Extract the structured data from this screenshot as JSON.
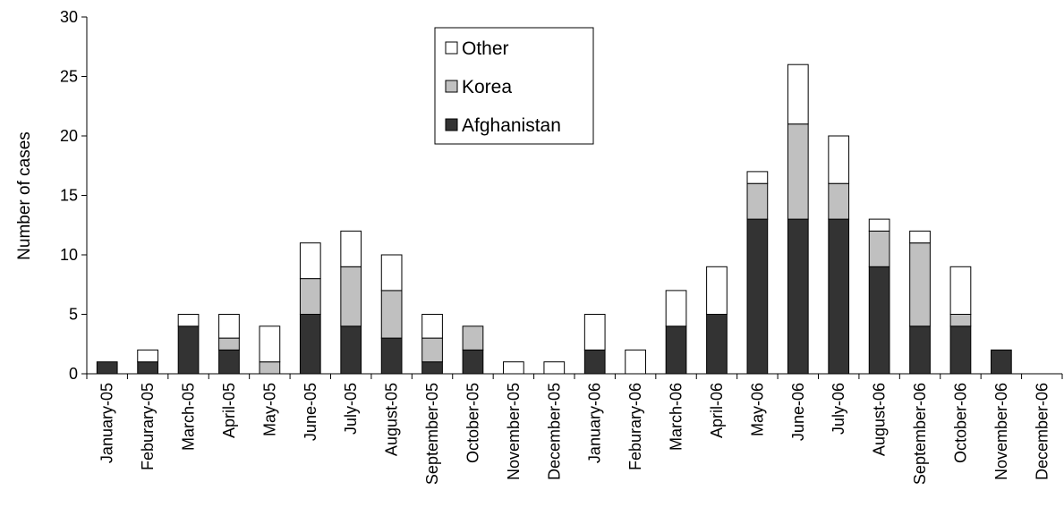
{
  "chart_data": {
    "type": "bar",
    "stacked": true,
    "ylabel": "Number of cases",
    "xlabel": "",
    "ylim": [
      0,
      30
    ],
    "yticks": [
      0,
      5,
      10,
      15,
      20,
      25,
      30
    ],
    "grid": false,
    "legend_position": "top-center",
    "categories": [
      "January-05",
      "Feburary-05",
      "March-05",
      "April-05",
      "May-05",
      "June-05",
      "July-05",
      "August-05",
      "September-05",
      "October-05",
      "November-05",
      "December-05",
      "January-06",
      "Feburary-06",
      "March-06",
      "April-06",
      "May-06",
      "June-06",
      "July-06",
      "August-06",
      "September-06",
      "October-06",
      "November-06",
      "December-06"
    ],
    "series": [
      {
        "name": "Afghanistan",
        "color": "#333333",
        "values": [
          1,
          1,
          4,
          2,
          0,
          5,
          4,
          3,
          1,
          2,
          0,
          0,
          2,
          0,
          4,
          5,
          13,
          13,
          13,
          9,
          4,
          4,
          2,
          0
        ]
      },
      {
        "name": "Korea",
        "color": "#c0c0c0",
        "values": [
          0,
          0,
          0,
          1,
          1,
          3,
          5,
          4,
          2,
          2,
          0,
          0,
          0,
          0,
          0,
          0,
          3,
          8,
          3,
          3,
          7,
          1,
          0,
          0
        ]
      },
      {
        "name": "Other",
        "color": "#ffffff",
        "values": [
          0,
          1,
          1,
          2,
          3,
          3,
          3,
          3,
          2,
          0,
          1,
          1,
          3,
          2,
          3,
          4,
          1,
          5,
          4,
          1,
          1,
          4,
          0,
          0
        ]
      }
    ],
    "legend_order": [
      "Other",
      "Korea",
      "Afghanistan"
    ]
  }
}
